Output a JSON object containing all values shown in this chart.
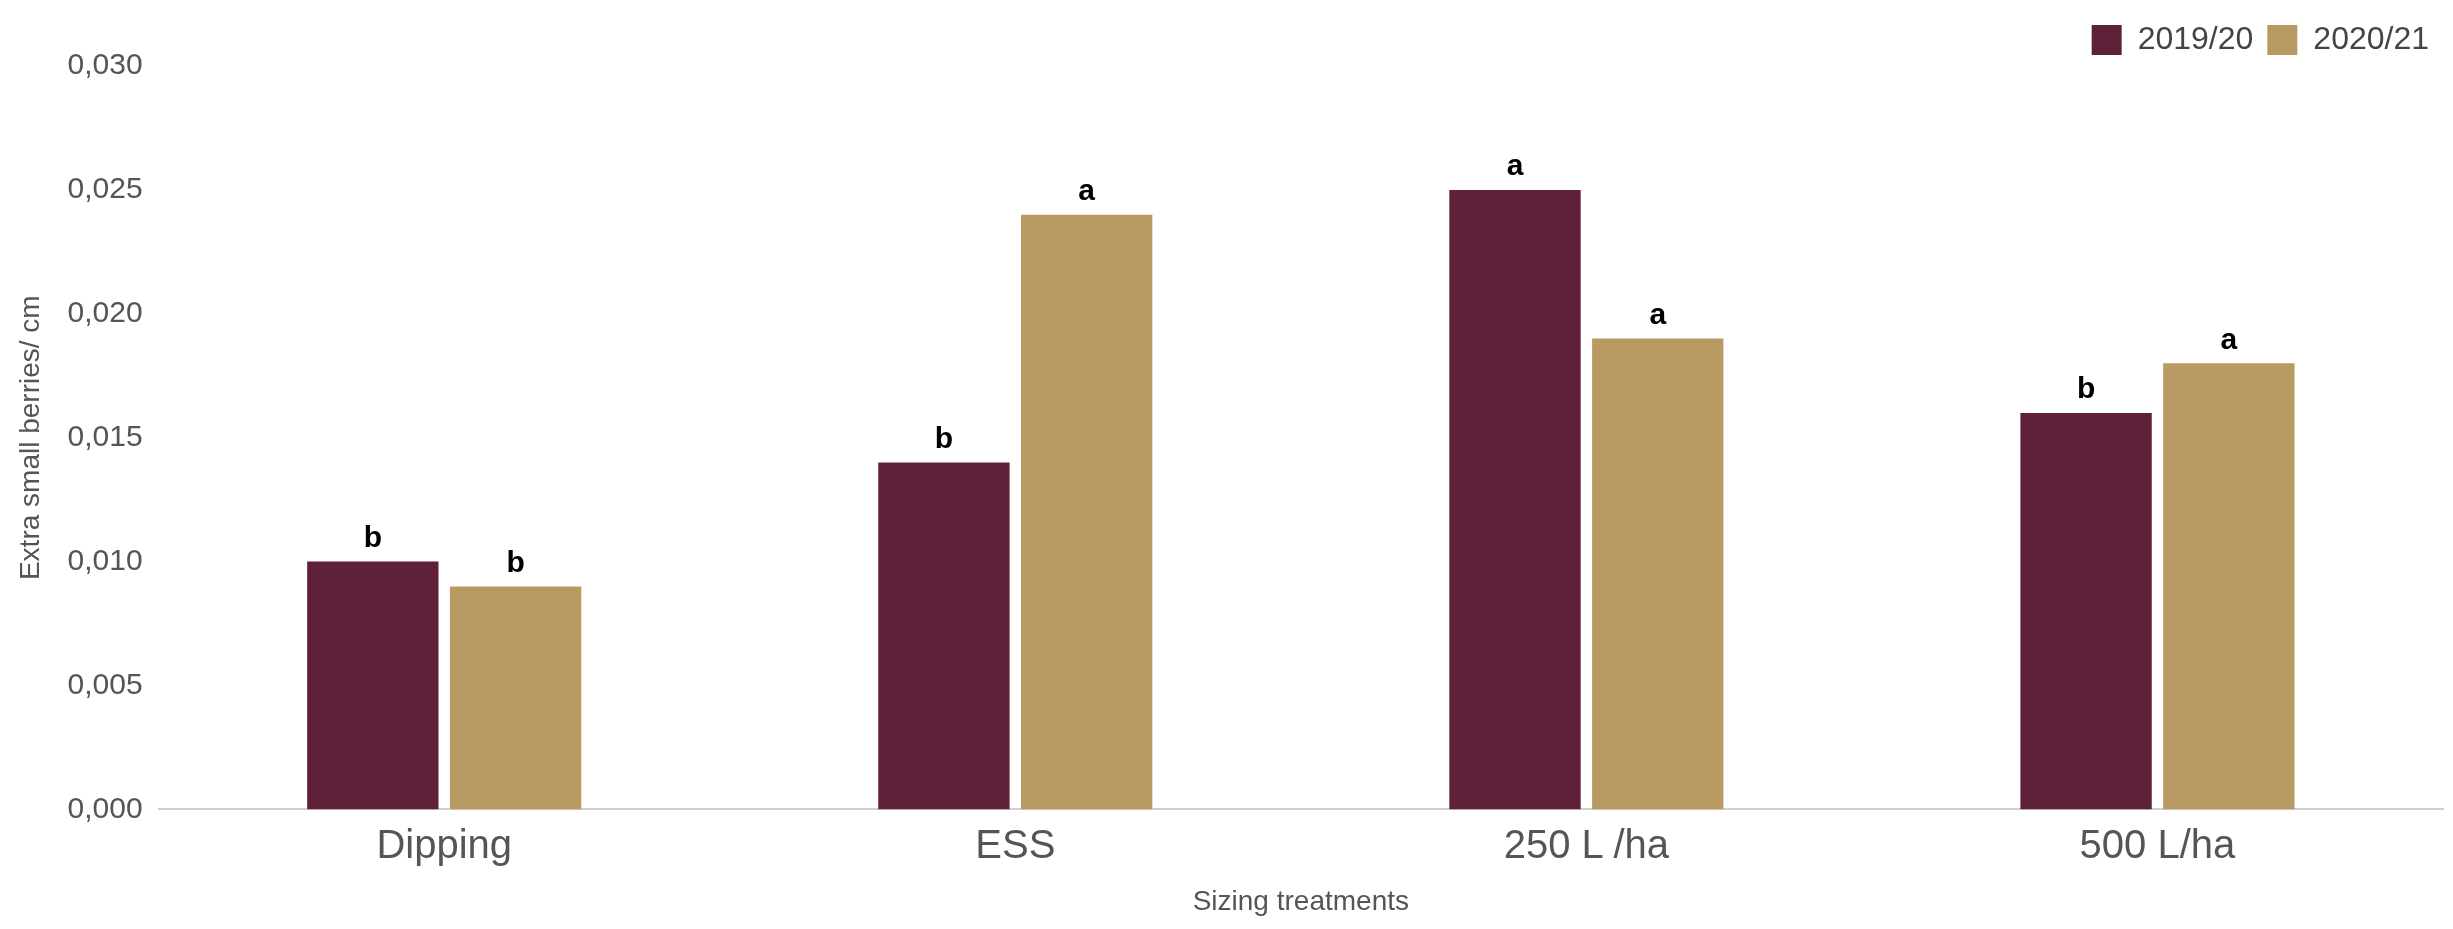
{
  "chart_data": {
    "type": "bar",
    "xlabel": "Sizing treatments",
    "ylabel": "Extra small berries/ cm",
    "categories": [
      "Dipping",
      "ESS",
      "250 L /ha",
      "500 L/ha"
    ],
    "series": [
      {
        "name": "2019/20",
        "color": "#5f2139",
        "values": [
          0.01,
          0.014,
          0.025,
          0.016
        ]
      },
      {
        "name": "2020/21",
        "color": "#b89a62",
        "values": [
          0.009,
          0.024,
          0.019,
          0.018
        ]
      }
    ],
    "ylim": [
      0,
      0.03
    ],
    "yticks": [
      {
        "value": 0,
        "label": "0,000"
      },
      {
        "value": 0.005,
        "label": "0,005"
      },
      {
        "value": 0.01,
        "label": "0,010"
      },
      {
        "value": 0.015,
        "label": "0,015"
      },
      {
        "value": 0.02,
        "label": "0,020"
      },
      {
        "value": 0.025,
        "label": "0,025"
      },
      {
        "value": 0.03,
        "label": "0,030"
      }
    ],
    "grid": false,
    "legend": "top right",
    "annotations": [
      "b",
      "b",
      "b",
      "a",
      "a",
      "a",
      "b",
      "a"
    ]
  }
}
